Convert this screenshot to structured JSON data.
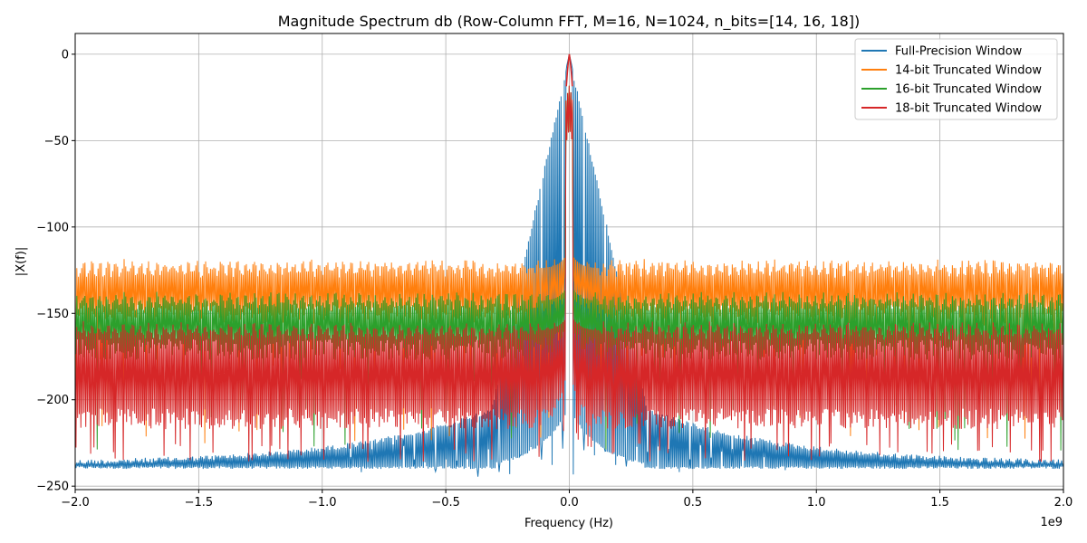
{
  "chart_data": {
    "type": "line",
    "title": "Magnitude Spectrum db (Row-Column FFT, M=16, N=1024, n_bits=[14, 16, 18])",
    "xlabel": "Frequency (Hz)",
    "ylabel": "|X(f)|",
    "x_offset_text": "1e9",
    "xlim": [
      -2.0,
      2.0
    ],
    "ylim": [
      -252,
      12
    ],
    "x_ticks": [
      -2.0,
      -1.5,
      -1.0,
      -0.5,
      0.0,
      0.5,
      1.0,
      1.5,
      2.0
    ],
    "x_tick_labels": [
      "−2.0",
      "−1.5",
      "−1.0",
      "−0.5",
      "0.0",
      "0.5",
      "1.0",
      "1.5",
      "2.0"
    ],
    "y_ticks": [
      0,
      -50,
      -100,
      -150,
      -200,
      -250
    ],
    "y_tick_labels": [
      "0",
      "−50",
      "−100",
      "−150",
      "−200",
      "−250"
    ],
    "grid": true,
    "legend_position": "top-right",
    "series": [
      {
        "name": "Full-Precision Window",
        "color": "#1f77b4",
        "peak_db": 0,
        "envelope_top_near_center_db": -180,
        "envelope_top_edge_db": -236,
        "floor_db": -240
      },
      {
        "name": "14-bit Truncated Window",
        "color": "#ff7f0e",
        "peak_db": 0,
        "band_top_db": -124,
        "band_core_bottom_db": -145,
        "min_db": -226
      },
      {
        "name": "16-bit Truncated Window",
        "color": "#2ca02c",
        "peak_db": 0,
        "band_top_db": -143,
        "band_core_bottom_db": -165,
        "min_db": -230
      },
      {
        "name": "18-bit Truncated Window",
        "color": "#d62728",
        "peak_db": 0,
        "band_top_db": -160,
        "band_core_bottom_db": -205,
        "min_db": -236
      }
    ]
  }
}
